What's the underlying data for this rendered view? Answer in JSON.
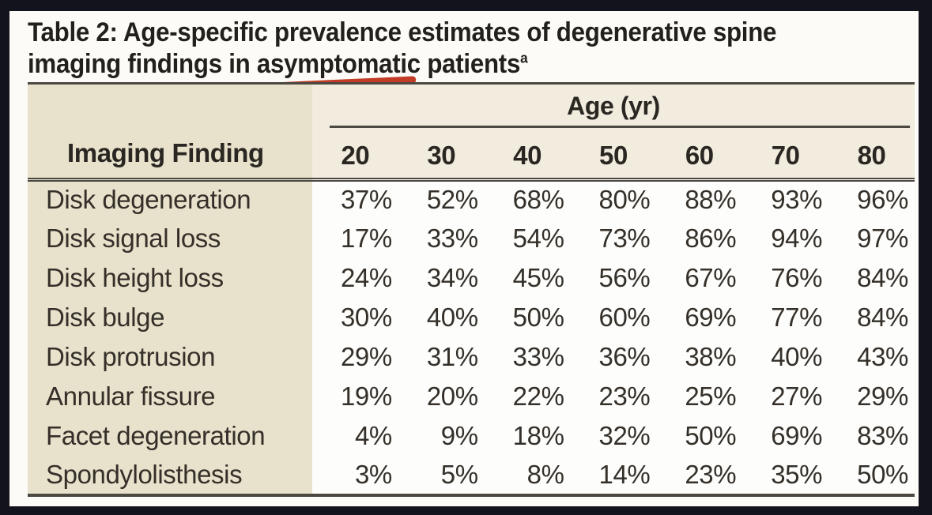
{
  "title": {
    "line1": "Table 2: Age-specific prevalence estimates of degenerative spine",
    "line2_before": "imaging findings in ",
    "underlined_word": "asymptomatic",
    "line2_after": " patients",
    "footnote_marker": "a"
  },
  "table": {
    "stub_header": "Imaging Finding",
    "age_group_header": "Age (yr)",
    "age_columns": [
      "20",
      "30",
      "40",
      "50",
      "60",
      "70",
      "80"
    ],
    "rows": [
      {
        "finding": "Disk degeneration",
        "values": [
          "37%",
          "52%",
          "68%",
          "80%",
          "88%",
          "93%",
          "96%"
        ]
      },
      {
        "finding": "Disk signal loss",
        "values": [
          "17%",
          "33%",
          "54%",
          "73%",
          "86%",
          "94%",
          "97%"
        ]
      },
      {
        "finding": "Disk height loss",
        "values": [
          "24%",
          "34%",
          "45%",
          "56%",
          "67%",
          "76%",
          "84%"
        ]
      },
      {
        "finding": "Disk bulge",
        "values": [
          "30%",
          "40%",
          "50%",
          "60%",
          "69%",
          "77%",
          "84%"
        ]
      },
      {
        "finding": "Disk protrusion",
        "values": [
          "29%",
          "31%",
          "33%",
          "36%",
          "38%",
          "40%",
          "43%"
        ]
      },
      {
        "finding": "Annular fissure",
        "values": [
          "19%",
          "20%",
          "22%",
          "23%",
          "25%",
          "27%",
          "29%"
        ]
      },
      {
        "finding": "Facet degeneration",
        "values": [
          "4%",
          "9%",
          "18%",
          "32%",
          "50%",
          "69%",
          "83%"
        ]
      },
      {
        "finding": "Spondylolisthesis",
        "values": [
          "3%",
          "5%",
          "8%",
          "14%",
          "23%",
          "35%",
          "50%"
        ]
      }
    ]
  },
  "colors": {
    "frame": "#13131d",
    "paper": "#fcfbf7",
    "stub_beige": "#e8e1cb",
    "header_beige": "#f1ecde",
    "text_dark": "#2b2825",
    "rule": "#4b4741",
    "red": "#c23b26"
  }
}
